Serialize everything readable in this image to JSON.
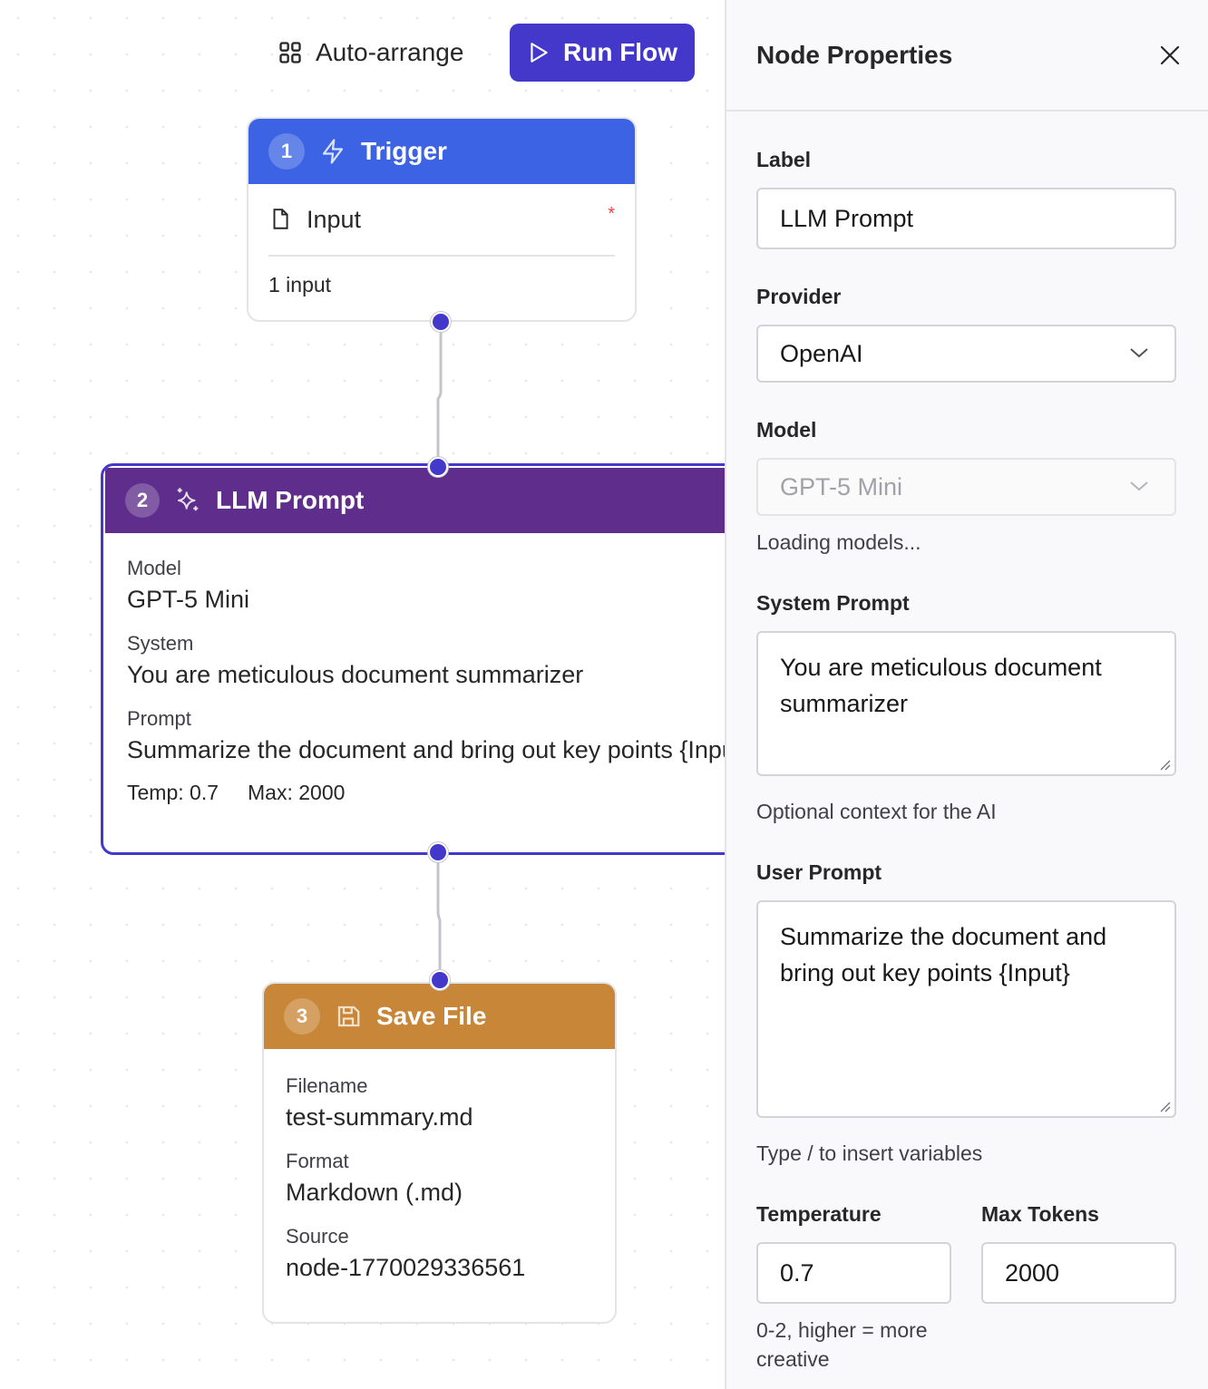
{
  "toolbar": {
    "auto_arrange": "Auto-arrange",
    "run_flow": "Run Flow"
  },
  "nodes": [
    {
      "number": "1",
      "title": "Trigger",
      "color": "#3b63e3",
      "field_label": "Input",
      "required_mark": "*",
      "footer": "1 input"
    },
    {
      "number": "2",
      "title": "LLM Prompt",
      "color": "#5f2d8c",
      "model_label": "Model",
      "model": "GPT-5 Mini",
      "system_label": "System",
      "system": "You are meticulous document summarizer",
      "prompt_label": "Prompt",
      "prompt": "Summarize the document and bring out key points {Input}",
      "temp": "Temp: 0.7",
      "max": "Max: 2000"
    },
    {
      "number": "3",
      "title": "Save File",
      "color": "#c88738",
      "filename_label": "Filename",
      "filename": "test-summary.md",
      "format_label": "Format",
      "format": "Markdown (.md)",
      "source_label": "Source",
      "source": "node-1770029336561"
    }
  ],
  "panel": {
    "title": "Node Properties",
    "label_label": "Label",
    "label_value": "LLM Prompt",
    "provider_label": "Provider",
    "provider_value": "OpenAI",
    "model_label": "Model",
    "model_value": "GPT-5 Mini",
    "model_help": "Loading models...",
    "system_label": "System Prompt",
    "system_value": "You are meticulous document summarizer",
    "system_help": "Optional context for the AI",
    "user_label": "User Prompt",
    "user_value": "Summarize the document and bring out key points {Input}",
    "user_help": "Type / to insert variables",
    "temp_label": "Temperature",
    "temp_value": "0.7",
    "temp_help": "0-2, higher = more creative",
    "max_label": "Max Tokens",
    "max_value": "2000"
  }
}
